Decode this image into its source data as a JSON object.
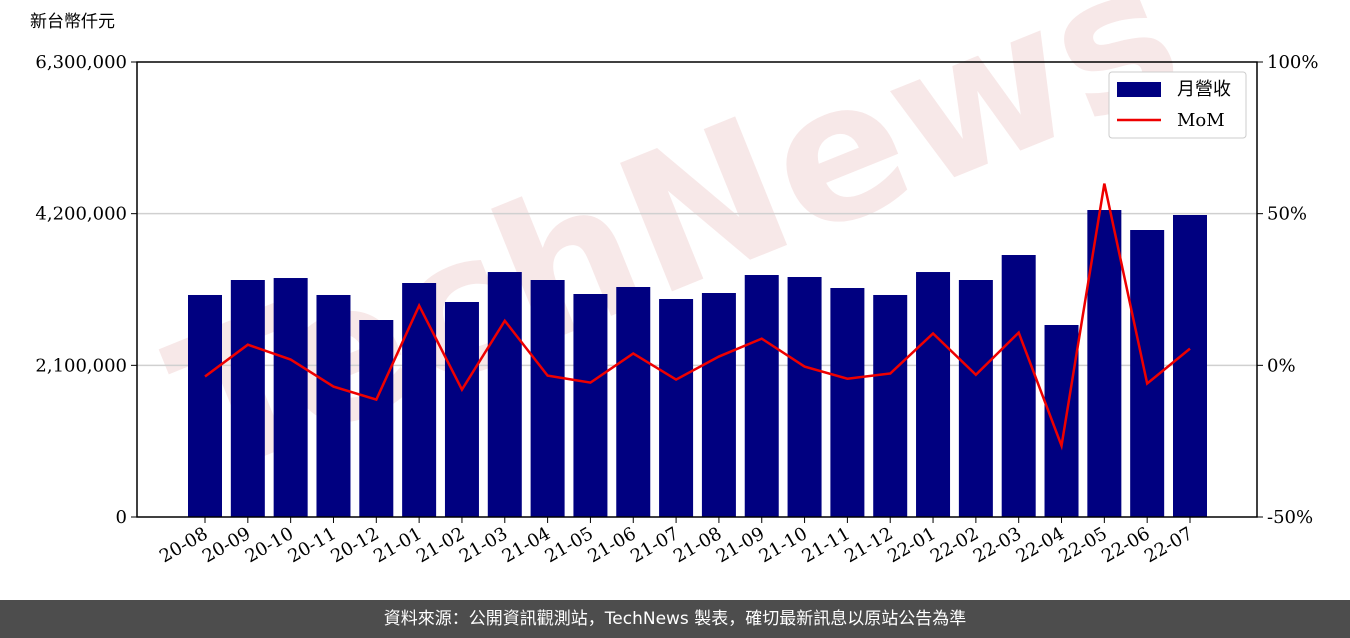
{
  "chart_data": {
    "type": "bar",
    "y_label": "新台幣仟元",
    "watermark": "TechNews",
    "categories": [
      "20-08",
      "20-09",
      "20-10",
      "20-11",
      "20-12",
      "21-01",
      "21-02",
      "21-03",
      "21-04",
      "21-05",
      "21-06",
      "21-07",
      "21-08",
      "21-09",
      "21-10",
      "21-11",
      "21-12",
      "22-01",
      "22-02",
      "22-03",
      "22-04",
      "22-05",
      "22-06",
      "22-07"
    ],
    "series": [
      {
        "name": "月營收",
        "type": "bar",
        "color": "#000080",
        "values": [
          3074000,
          3281500,
          3309000,
          3074000,
          2727700,
          3240000,
          2977000,
          3392000,
          3281500,
          3087700,
          3184600,
          3018500,
          3101500,
          3350700,
          3323000,
          3170700,
          3074000,
          3392000,
          3281500,
          3627600,
          2658500,
          4250700,
          3973800,
          4181500
        ]
      },
      {
        "name": "MoM",
        "type": "line",
        "axis": "y2",
        "color": "#ee0000",
        "values": [
          -3.7,
          6.8,
          1.9,
          -7.0,
          -11.3,
          19.7,
          -8.0,
          14.7,
          -3.4,
          -5.7,
          3.9,
          -4.7,
          2.9,
          8.8,
          -0.4,
          -4.4,
          -2.7,
          10.5,
          -3.1,
          10.8,
          -26.5,
          59.9,
          -6.0,
          5.5
        ]
      }
    ],
    "ylim": [
      0,
      6300000
    ],
    "yticks": [
      0,
      {
        "value": 2100000,
        "label": "2,100,000"
      },
      {
        "value": 4200000,
        "label": "4,200,000"
      },
      {
        "value": 6300000,
        "label": "6,300,000"
      }
    ],
    "y2lim": [
      -50,
      100
    ],
    "y2ticks": [
      {
        "value": -50,
        "label": "-50%"
      },
      {
        "value": 0,
        "label": "0%"
      },
      {
        "value": 50,
        "label": "50%"
      },
      {
        "value": 100,
        "label": "100%"
      }
    ],
    "grid": true,
    "legend": "upper right"
  },
  "footer": "資料來源：公開資訊觀測站，TechNews 製表，確切最新訊息以原站公告為準"
}
